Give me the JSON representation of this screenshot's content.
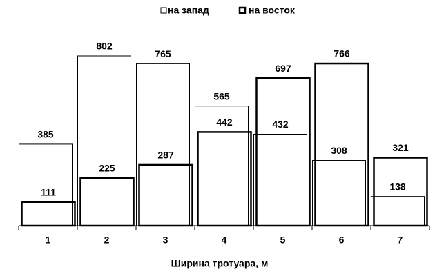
{
  "chart_data": {
    "type": "bar",
    "x_label": "Ширина тротуара, м",
    "categories": [
      "1",
      "2",
      "3",
      "4",
      "5",
      "6",
      "7"
    ],
    "series": [
      {
        "name": "на запад",
        "color": "#000000",
        "values": [
          385,
          802,
          765,
          565,
          432,
          308,
          138
        ]
      },
      {
        "name": "на восток",
        "color": "#000000",
        "values": [
          111,
          225,
          287,
          442,
          697,
          766,
          321
        ]
      }
    ],
    "legend": "top"
  }
}
